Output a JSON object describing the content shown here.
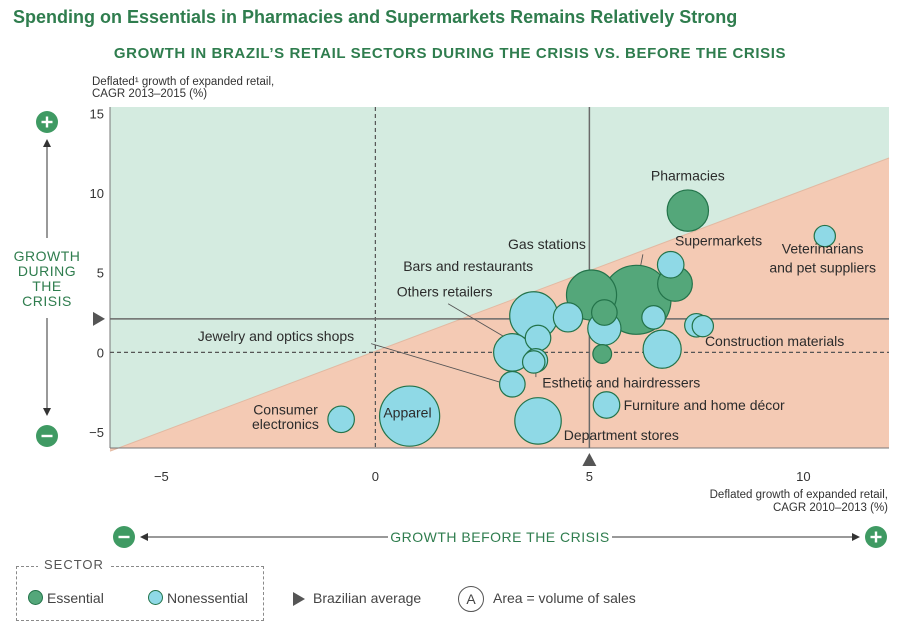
{
  "title": "Spending on Essentials in Pharmacies and Supermarkets Remains Relatively Strong",
  "subtitle": "GROWTH IN BRAZIL’S RETAIL SECTORS DURING THE CRISIS VS. BEFORE THE CRISIS",
  "legend": {
    "title": "SECTOR",
    "essential": "Essential",
    "nonessential": "Nonessential",
    "average": "Brazilian average",
    "area_letter": "A",
    "area_note": "Area = volume of sales"
  },
  "colors": {
    "essential": "#54a77a",
    "nonessential": "#8fd9e6",
    "outline": "#23734a",
    "above_region": "#d4ebe0",
    "below_region": "#f4cab4",
    "accent": "#2f7d4e"
  },
  "icons": [
    "plus-circle-icon",
    "minus-circle-icon",
    "triangle-marker-icon",
    "area-icon"
  ],
  "chart_data": {
    "type": "scatter",
    "xlabel_lines": [
      "Deflated  growth of expanded retail,",
      "CAGR 2010–2013 (%)"
    ],
    "ylabel_lines": [
      "Deflated¹ growth of expanded retail,",
      "CAGR 2013–2015 (%)"
    ],
    "x_axis_title": "GROWTH BEFORE THE CRISIS",
    "y_axis_title": [
      "GROWTH",
      "DURING",
      "THE",
      "CRISIS"
    ],
    "xlim": [
      -6.2,
      12.0
    ],
    "ylim": [
      -6.0,
      15.4
    ],
    "x_ticks": [
      -5,
      0,
      5,
      10
    ],
    "y_ticks": [
      15,
      10,
      5,
      0,
      -5
    ],
    "brazil_average": {
      "x": 5.0,
      "y": 2.1
    },
    "diagonal": [
      [
        -6.2,
        -6.2
      ],
      [
        12.0,
        12.2
      ]
    ],
    "bubbles": [
      {
        "label": "Pharmacies",
        "sector": "essential",
        "x": 7.3,
        "y": 8.9,
        "size": 3.4
      },
      {
        "label": "Supermarkets",
        "sector": "essential",
        "x": 6.1,
        "y": 3.3,
        "size": 9.5
      },
      {
        "label": "Gas stations",
        "sector": "essential",
        "x": 5.05,
        "y": 3.6,
        "size": 5.0
      },
      {
        "label": "",
        "sector": "essential",
        "x": 7.0,
        "y": 4.3,
        "size": 2.4
      },
      {
        "label": "",
        "sector": "essential",
        "x": 5.35,
        "y": 2.5,
        "size": 1.3
      },
      {
        "label": "",
        "sector": "essential",
        "x": 5.3,
        "y": -0.1,
        "size": 0.7
      },
      {
        "label": "Veterinarians and pet suppliers",
        "sector": "nonessential",
        "x": 10.5,
        "y": 7.3,
        "size": 0.9
      },
      {
        "label": "",
        "sector": "nonessential",
        "x": 6.9,
        "y": 5.5,
        "size": 1.4
      },
      {
        "label": "Bars and restaurants",
        "sector": "nonessential",
        "x": 3.7,
        "y": 2.3,
        "size": 4.6
      },
      {
        "label": "",
        "sector": "nonessential",
        "x": 4.5,
        "y": 2.2,
        "size": 1.7
      },
      {
        "label": "",
        "sector": "nonessential",
        "x": 3.8,
        "y": 0.9,
        "size": 1.3
      },
      {
        "label": "Others retailers",
        "sector": "nonessential",
        "x": 3.2,
        "y": 0.0,
        "size": 2.8
      },
      {
        "label": "",
        "sector": "nonessential",
        "x": 3.75,
        "y": -0.5,
        "size": 1.1
      },
      {
        "label": "Jewelry and optics shops",
        "sector": "nonessential",
        "x": 3.2,
        "y": -2.0,
        "size": 1.3
      },
      {
        "label": "",
        "sector": "nonessential",
        "x": 5.35,
        "y": 1.5,
        "size": 2.2
      },
      {
        "label": "",
        "sector": "nonessential",
        "x": 6.5,
        "y": 2.2,
        "size": 1.1
      },
      {
        "label": "Construction materials",
        "sector": "nonessential",
        "x": 6.7,
        "y": 0.2,
        "size": 2.9
      },
      {
        "label": "",
        "sector": "nonessential",
        "x": 7.5,
        "y": 1.7,
        "size": 1.1
      },
      {
        "label": "",
        "sector": "nonessential",
        "x": 7.65,
        "y": 1.65,
        "size": 0.9
      },
      {
        "label": "Esthetic and hairdressers",
        "sector": "nonessential",
        "x": 3.7,
        "y": -0.6,
        "size": 1.0
      },
      {
        "label": "Furniture and home décor",
        "sector": "nonessential",
        "x": 5.4,
        "y": -3.3,
        "size": 1.4
      },
      {
        "label": "Department stores",
        "sector": "nonessential",
        "x": 3.8,
        "y": -4.3,
        "size": 4.3
      },
      {
        "label": "Apparel",
        "sector": "nonessential",
        "x": 0.8,
        "y": -4.0,
        "size": 7.2
      },
      {
        "label": "Consumer electronics",
        "sector": "nonessential",
        "x": -0.8,
        "y": -4.2,
        "size": 1.4
      }
    ],
    "labels": [
      {
        "text": "Pharmacies",
        "x": 7.3,
        "y": 10.8,
        "anchor": "middle"
      },
      {
        "text": "Supermarkets",
        "x": 7.0,
        "y": 6.7,
        "anchor": "start"
      },
      {
        "text": "Veterinarians",
        "x": 10.45,
        "y": 6.2,
        "anchor": "middle"
      },
      {
        "text": "and pet suppliers",
        "x": 10.45,
        "y": 5.0,
        "anchor": "middle"
      },
      {
        "text": "Gas stations",
        "x": 3.1,
        "y": 6.5,
        "anchor": "start"
      },
      {
        "text": "Bars and restaurants",
        "x": 0.65,
        "y": 5.1,
        "anchor": "start"
      },
      {
        "text": "Others retailers",
        "x": 0.5,
        "y": 3.5,
        "anchor": "start"
      },
      {
        "text": "Jewelry and optics shops",
        "x": -4.15,
        "y": 0.7,
        "anchor": "start"
      },
      {
        "text": "Construction materials",
        "x": 7.7,
        "y": 0.4,
        "anchor": "start"
      },
      {
        "text": "Esthetic and hairdressers",
        "x": 3.9,
        "y": -2.2,
        "anchor": "start"
      },
      {
        "text": "Furniture and home décor",
        "x": 5.8,
        "y": -3.6,
        "anchor": "start"
      },
      {
        "text": "Department stores",
        "x": 4.4,
        "y": -5.5,
        "anchor": "start"
      },
      {
        "text": "Apparel",
        "x": 0.75,
        "y": -4.1,
        "anchor": "middle"
      },
      {
        "text": "Consumer",
        "x": -2.1,
        "y": -3.9,
        "anchor": "middle"
      },
      {
        "text": "electronics",
        "x": -2.1,
        "y": -4.8,
        "anchor": "middle"
      }
    ],
    "leaders": [
      [
        [
          1.7,
          3.05
        ],
        [
          3.0,
          1.0
        ]
      ],
      [
        [
          -0.1,
          0.55
        ],
        [
          2.95,
          -1.9
        ]
      ],
      [
        [
          3.75,
          -1.55
        ],
        [
          3.75,
          -0.75
        ]
      ],
      [
        [
          6.25,
          6.15
        ],
        [
          6.15,
          4.8
        ]
      ]
    ]
  }
}
